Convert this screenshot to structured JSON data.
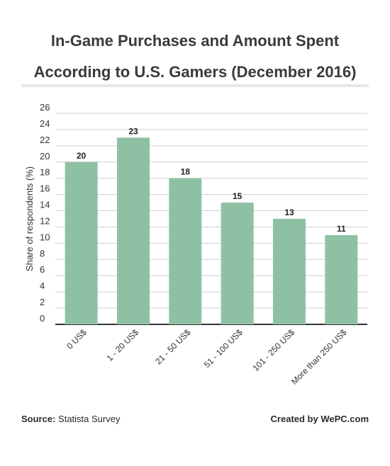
{
  "title": "In-Game Purchases and Amount Spent According to U.S. Gamers (December 2016)",
  "footer": {
    "source_label": "Source:",
    "source_value": "Statista Survey",
    "credit": "Created by WePC.com"
  },
  "colors": {
    "bar": "#8ec1a4",
    "grid": "#cfcfcf",
    "axis": "#333333"
  },
  "chart_data": {
    "type": "bar",
    "categories": [
      "0 US$",
      "1 - 20 US$",
      "21 - 50 US$",
      "51 - 100 US$",
      "101 - 250 US$",
      "More than 250 US$"
    ],
    "values": [
      20,
      23,
      18,
      15,
      13,
      11
    ],
    "xlabel": "",
    "ylabel": "Share of respondents (%)",
    "ylim": [
      0,
      26
    ],
    "yticks": [
      0,
      2,
      4,
      6,
      8,
      10,
      12,
      14,
      16,
      18,
      20,
      22,
      24,
      26
    ],
    "grid": true,
    "data_labels": true
  }
}
